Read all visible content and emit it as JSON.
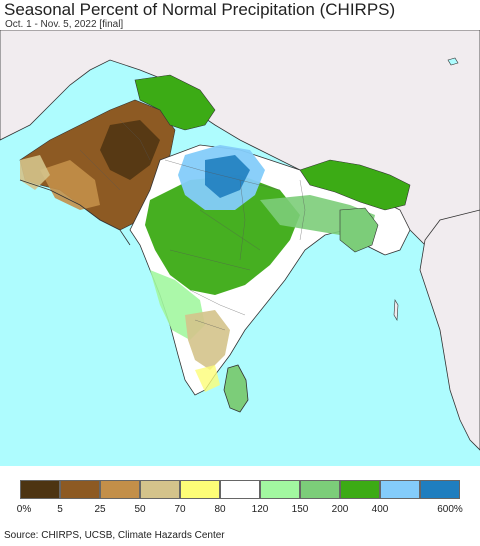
{
  "title": "Seasonal Percent of Normal Precipitation (CHIRPS)",
  "subtitle": "Oct. 1 - Nov. 5, 2022 [final]",
  "legend": {
    "colors": [
      "#4d3412",
      "#8d5a23",
      "#c38f49",
      "#d4c38b",
      "#fdfd77",
      "#ffffff",
      "#a2f7a0",
      "#7ccd79",
      "#3cab15",
      "#84ccfa",
      "#1f7ebf"
    ],
    "labels": [
      "0%",
      "5",
      "25",
      "50",
      "70",
      "80",
      "120",
      "150",
      "200",
      "400",
      "600%"
    ]
  },
  "source": "Source: CHIRPS, UCSB, Climate Hazards Center",
  "colors": {
    "ocean": "#aefcfe",
    "land_outside": "#f1ecef",
    "border": "#222222"
  }
}
